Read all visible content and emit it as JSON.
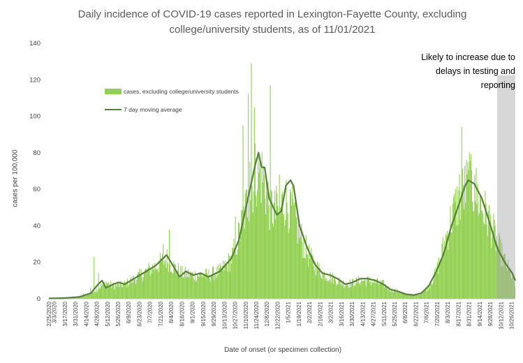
{
  "chart_data": {
    "type": "bar",
    "title_line1": "Daily incidence of COVID-19 cases reported in Lexington-Fayette County, excluding",
    "title_line2": "college/university students, as of 11/01/2021",
    "xlabel": "Date of onset (or specimen collection)",
    "ylabel": "cases per 100,000",
    "ylim": [
      0,
      140
    ],
    "yticks": [
      "0",
      "20",
      "40",
      "60",
      "80",
      "100",
      "120",
      "140"
    ],
    "annotation_line1": "Likely to increase due to",
    "annotation_line2": "delays in testing and",
    "annotation_line3": "reporting",
    "shaded_region": {
      "start_day": 590,
      "end_day": 614
    },
    "x_start": "2/25/2020",
    "num_days": 614,
    "xtick_labels": [
      "2/25/2020",
      "3/3/2020",
      "3/17/2020",
      "3/31/2020",
      "4/14/2020",
      "4/28/2020",
      "5/12/2020",
      "5/26/2020",
      "6/9/2020",
      "6/23/2020",
      "7/7/2020",
      "7/21/2020",
      "8/4/2020",
      "8/18/2020",
      "9/1/2020",
      "9/15/2020",
      "9/29/2020",
      "10/13/2020",
      "10/27/2020",
      "11/10/2020",
      "11/24/2020",
      "12/8/2020",
      "12/22/2020",
      "1/5/2021",
      "1/19/2021",
      "2/2/2021",
      "2/16/2021",
      "3/2/2021",
      "3/16/2021",
      "3/30/2021",
      "4/13/2021",
      "4/27/2021",
      "5/11/2021",
      "5/25/2021",
      "6/8/2021",
      "6/22/2021",
      "7/6/2021",
      "7/20/2021",
      "8/3/2021",
      "8/17/2021",
      "8/31/2021",
      "9/14/2021",
      "9/28/2021",
      "10/12/2021",
      "10/26/2021"
    ],
    "xtick_days": [
      0,
      7,
      21,
      35,
      49,
      63,
      77,
      91,
      105,
      119,
      133,
      147,
      161,
      175,
      189,
      203,
      217,
      231,
      245,
      259,
      273,
      287,
      301,
      315,
      329,
      343,
      357,
      371,
      385,
      399,
      413,
      427,
      441,
      455,
      469,
      483,
      497,
      511,
      525,
      539,
      553,
      567,
      581,
      595,
      609
    ],
    "series": [
      {
        "name": "cases, excluding college/university students",
        "kind": "bar",
        "color": "#92d050",
        "keypoints": [
          [
            0,
            0.3
          ],
          [
            20,
            0.5
          ],
          [
            40,
            1
          ],
          [
            55,
            3
          ],
          [
            65,
            6
          ],
          [
            75,
            9
          ],
          [
            85,
            7
          ],
          [
            100,
            8
          ],
          [
            120,
            13
          ],
          [
            140,
            18
          ],
          [
            155,
            22
          ],
          [
            165,
            17
          ],
          [
            175,
            14
          ],
          [
            190,
            13
          ],
          [
            210,
            13
          ],
          [
            225,
            15
          ],
          [
            240,
            22
          ],
          [
            250,
            35
          ],
          [
            262,
            55
          ],
          [
            272,
            70
          ],
          [
            280,
            68
          ],
          [
            290,
            52
          ],
          [
            300,
            45
          ],
          [
            310,
            55
          ],
          [
            320,
            48
          ],
          [
            330,
            35
          ],
          [
            340,
            25
          ],
          [
            350,
            18
          ],
          [
            360,
            14
          ],
          [
            370,
            12
          ],
          [
            380,
            10
          ],
          [
            390,
            8
          ],
          [
            400,
            9
          ],
          [
            410,
            10
          ],
          [
            420,
            10
          ],
          [
            430,
            9
          ],
          [
            440,
            8
          ],
          [
            450,
            5
          ],
          [
            460,
            4
          ],
          [
            470,
            2.5
          ],
          [
            480,
            2
          ],
          [
            490,
            3
          ],
          [
            500,
            7
          ],
          [
            510,
            15
          ],
          [
            520,
            30
          ],
          [
            530,
            45
          ],
          [
            540,
            55
          ],
          [
            550,
            62
          ],
          [
            560,
            60
          ],
          [
            570,
            50
          ],
          [
            580,
            42
          ],
          [
            590,
            30
          ],
          [
            600,
            20
          ],
          [
            610,
            12
          ],
          [
            614,
            6
          ]
        ],
        "spikes": [
          [
            45,
            3
          ],
          [
            54,
            6
          ],
          [
            59,
            23
          ],
          [
            65,
            14
          ],
          [
            150,
            30
          ],
          [
            158,
            38
          ],
          [
            245,
            45
          ],
          [
            255,
            95
          ],
          [
            262,
            112
          ],
          [
            264,
            75
          ],
          [
            266,
            129
          ],
          [
            270,
            105
          ],
          [
            282,
            73
          ],
          [
            286,
            65
          ],
          [
            291,
            117
          ],
          [
            299,
            62
          ],
          [
            303,
            68
          ],
          [
            317,
            60
          ],
          [
            352,
            18
          ],
          [
            531,
            52
          ],
          [
            540,
            68
          ],
          [
            543,
            94
          ],
          [
            553,
            80
          ],
          [
            560,
            68
          ]
        ]
      },
      {
        "name": "7 day moving average",
        "kind": "line",
        "color": "#548235",
        "keypoints": [
          [
            0,
            0.2
          ],
          [
            20,
            0.4
          ],
          [
            40,
            1
          ],
          [
            55,
            3
          ],
          [
            65,
            8
          ],
          [
            70,
            10
          ],
          [
            75,
            6
          ],
          [
            85,
            8
          ],
          [
            92,
            9
          ],
          [
            100,
            8
          ],
          [
            120,
            13
          ],
          [
            140,
            18
          ],
          [
            155,
            24
          ],
          [
            165,
            17
          ],
          [
            172,
            12
          ],
          [
            180,
            15
          ],
          [
            190,
            13
          ],
          [
            200,
            14
          ],
          [
            210,
            12
          ],
          [
            225,
            15
          ],
          [
            240,
            22
          ],
          [
            250,
            32
          ],
          [
            262,
            55
          ],
          [
            272,
            74
          ],
          [
            276,
            80
          ],
          [
            280,
            72
          ],
          [
            284,
            72
          ],
          [
            290,
            55
          ],
          [
            300,
            46
          ],
          [
            306,
            48
          ],
          [
            312,
            62
          ],
          [
            318,
            65
          ],
          [
            322,
            62
          ],
          [
            330,
            40
          ],
          [
            340,
            28
          ],
          [
            350,
            19
          ],
          [
            360,
            14
          ],
          [
            370,
            13
          ],
          [
            380,
            11
          ],
          [
            390,
            8
          ],
          [
            400,
            9
          ],
          [
            410,
            11
          ],
          [
            420,
            11
          ],
          [
            430,
            10
          ],
          [
            440,
            8
          ],
          [
            450,
            5
          ],
          [
            460,
            4
          ],
          [
            470,
            2.5
          ],
          [
            480,
            2
          ],
          [
            490,
            3
          ],
          [
            500,
            7
          ],
          [
            510,
            15
          ],
          [
            520,
            25
          ],
          [
            530,
            40
          ],
          [
            540,
            52
          ],
          [
            548,
            62
          ],
          [
            552,
            65
          ],
          [
            560,
            63
          ],
          [
            570,
            55
          ],
          [
            580,
            42
          ],
          [
            590,
            28
          ],
          [
            600,
            20
          ],
          [
            610,
            14
          ],
          [
            614,
            10
          ]
        ]
      }
    ]
  }
}
